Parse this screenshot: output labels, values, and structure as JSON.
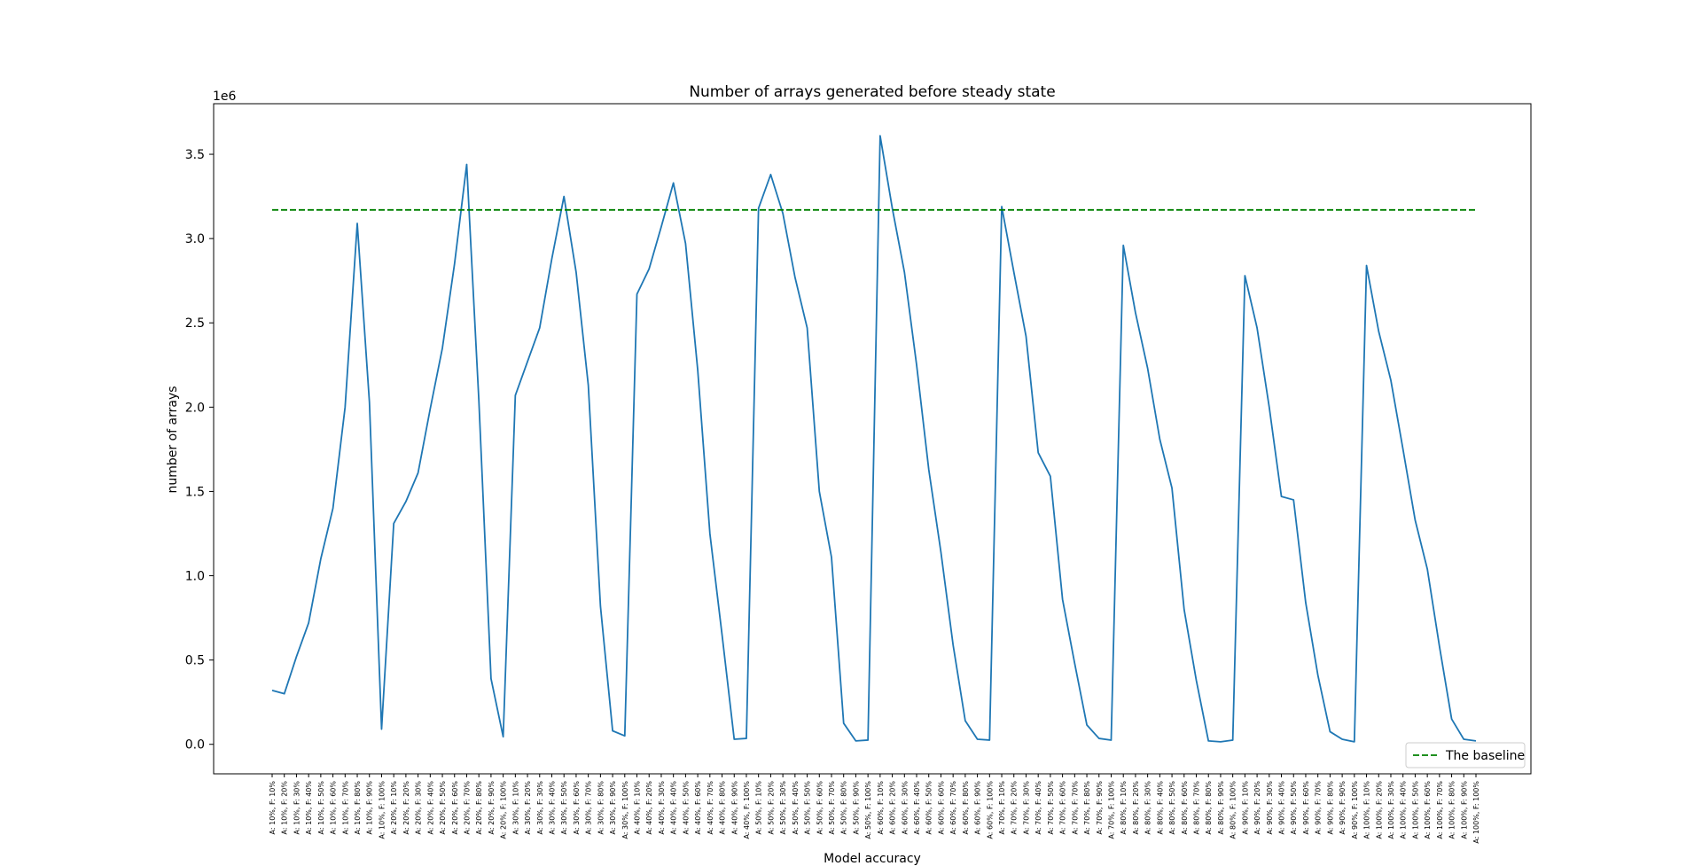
{
  "chart_data": {
    "type": "line",
    "title": "Number of arrays generated before steady state",
    "xlabel": "Model accuracy",
    "ylabel": "number of arrays",
    "y_offset_label": "1e6",
    "y_scale": 1000000,
    "ylim": [
      -175000,
      3800000
    ],
    "yticks": [
      0,
      500000,
      1000000,
      1500000,
      2000000,
      2500000,
      3000000,
      3500000
    ],
    "ytick_labels": [
      "0.0",
      "0.5",
      "1.0",
      "1.5",
      "2.0",
      "2.5",
      "3.0",
      "3.5"
    ],
    "grid": false,
    "legend_position": "lower-right",
    "categories": [
      "A: 10%, F: 10%",
      "A: 10%, F: 20%",
      "A: 10%, F: 30%",
      "A: 10%, F: 40%",
      "A: 10%, F: 50%",
      "A: 10%, F: 60%",
      "A: 10%, F: 70%",
      "A: 10%, F: 80%",
      "A: 10%, F: 90%",
      "A: 10%, F: 100%",
      "A: 20%, F: 10%",
      "A: 20%, F: 20%",
      "A: 20%, F: 30%",
      "A: 20%, F: 40%",
      "A: 20%, F: 50%",
      "A: 20%, F: 60%",
      "A: 20%, F: 70%",
      "A: 20%, F: 80%",
      "A: 20%, F: 90%",
      "A: 20%, F: 100%",
      "A: 30%, F: 10%",
      "A: 30%, F: 20%",
      "A: 30%, F: 30%",
      "A: 30%, F: 40%",
      "A: 30%, F: 50%",
      "A: 30%, F: 60%",
      "A: 30%, F: 70%",
      "A: 30%, F: 80%",
      "A: 30%, F: 90%",
      "A: 30%, F: 100%",
      "A: 40%, F: 10%",
      "A: 40%, F: 20%",
      "A: 40%, F: 30%",
      "A: 40%, F: 40%",
      "A: 40%, F: 50%",
      "A: 40%, F: 60%",
      "A: 40%, F: 70%",
      "A: 40%, F: 80%",
      "A: 40%, F: 90%",
      "A: 40%, F: 100%",
      "A: 50%, F: 10%",
      "A: 50%, F: 20%",
      "A: 50%, F: 30%",
      "A: 50%, F: 40%",
      "A: 50%, F: 50%",
      "A: 50%, F: 60%",
      "A: 50%, F: 70%",
      "A: 50%, F: 80%",
      "A: 50%, F: 90%",
      "A: 50%, F: 100%",
      "A: 60%, F: 10%",
      "A: 60%, F: 20%",
      "A: 60%, F: 30%",
      "A: 60%, F: 40%",
      "A: 60%, F: 50%",
      "A: 60%, F: 60%",
      "A: 60%, F: 70%",
      "A: 60%, F: 80%",
      "A: 60%, F: 90%",
      "A: 60%, F: 100%",
      "A: 70%, F: 10%",
      "A: 70%, F: 20%",
      "A: 70%, F: 30%",
      "A: 70%, F: 40%",
      "A: 70%, F: 50%",
      "A: 70%, F: 60%",
      "A: 70%, F: 70%",
      "A: 70%, F: 80%",
      "A: 70%, F: 90%",
      "A: 70%, F: 100%",
      "A: 80%, F: 10%",
      "A: 80%, F: 20%",
      "A: 80%, F: 30%",
      "A: 80%, F: 40%",
      "A: 80%, F: 50%",
      "A: 80%, F: 60%",
      "A: 80%, F: 70%",
      "A: 80%, F: 80%",
      "A: 80%, F: 90%",
      "A: 80%, F: 100%",
      "A: 90%, F: 10%",
      "A: 90%, F: 20%",
      "A: 90%, F: 30%",
      "A: 90%, F: 40%",
      "A: 90%, F: 50%",
      "A: 90%, F: 60%",
      "A: 90%, F: 70%",
      "A: 90%, F: 80%",
      "A: 90%, F: 90%",
      "A: 90%, F: 100%",
      "A: 100%, F: 10%",
      "A: 100%, F: 20%",
      "A: 100%, F: 30%",
      "A: 100%, F: 40%",
      "A: 100%, F: 50%",
      "A: 100%, F: 60%",
      "A: 100%, F: 70%",
      "A: 100%, F: 80%",
      "A: 100%, F: 90%",
      "A: 100%, F: 100%"
    ],
    "series": [
      {
        "color": "#1f77b4",
        "style": "solid",
        "values": [
          320000,
          300000,
          520000,
          720000,
          1100000,
          1400000,
          2000000,
          3090000,
          2030000,
          90000,
          1310000,
          1440000,
          1610000,
          1990000,
          2350000,
          2850000,
          3440000,
          2040000,
          390000,
          45000,
          2070000,
          2270000,
          2470000,
          2880000,
          3250000,
          2800000,
          2130000,
          820000,
          80000,
          50000,
          2670000,
          2820000,
          3070000,
          3330000,
          2970000,
          2220000,
          1250000,
          650000,
          30000,
          35000,
          3180000,
          3380000,
          3150000,
          2770000,
          2470000,
          1500000,
          1110000,
          125000,
          20000,
          25000,
          3610000,
          3180000,
          2800000,
          2250000,
          1630000,
          1140000,
          590000,
          140000,
          30000,
          25000,
          3190000,
          2800000,
          2420000,
          1730000,
          1590000,
          860000,
          480000,
          115000,
          35000,
          25000,
          2960000,
          2560000,
          2230000,
          1810000,
          1520000,
          800000,
          380000,
          20000,
          15000,
          25000,
          2780000,
          2470000,
          2000000,
          1470000,
          1450000,
          840000,
          410000,
          75000,
          30000,
          15000,
          2840000,
          2450000,
          2160000,
          1750000,
          1330000,
          1040000,
          580000,
          150000,
          30000,
          20000
        ]
      },
      {
        "name": "The baseline",
        "color": "#008000",
        "style": "dashed",
        "values": [
          3170000,
          3170000,
          3170000,
          3170000,
          3170000,
          3170000,
          3170000,
          3170000,
          3170000,
          3170000,
          3170000,
          3170000,
          3170000,
          3170000,
          3170000,
          3170000,
          3170000,
          3170000,
          3170000,
          3170000,
          3170000,
          3170000,
          3170000,
          3170000,
          3170000,
          3170000,
          3170000,
          3170000,
          3170000,
          3170000,
          3170000,
          3170000,
          3170000,
          3170000,
          3170000,
          3170000,
          3170000,
          3170000,
          3170000,
          3170000,
          3170000,
          3170000,
          3170000,
          3170000,
          3170000,
          3170000,
          3170000,
          3170000,
          3170000,
          3170000,
          3170000,
          3170000,
          3170000,
          3170000,
          3170000,
          3170000,
          3170000,
          3170000,
          3170000,
          3170000,
          3170000,
          3170000,
          3170000,
          3170000,
          3170000,
          3170000,
          3170000,
          3170000,
          3170000,
          3170000,
          3170000,
          3170000,
          3170000,
          3170000,
          3170000,
          3170000,
          3170000,
          3170000,
          3170000,
          3170000,
          3170000,
          3170000,
          3170000,
          3170000,
          3170000,
          3170000,
          3170000,
          3170000,
          3170000,
          3170000,
          3170000,
          3170000,
          3170000,
          3170000,
          3170000,
          3170000,
          3170000,
          3170000,
          3170000,
          3170000
        ]
      }
    ]
  }
}
